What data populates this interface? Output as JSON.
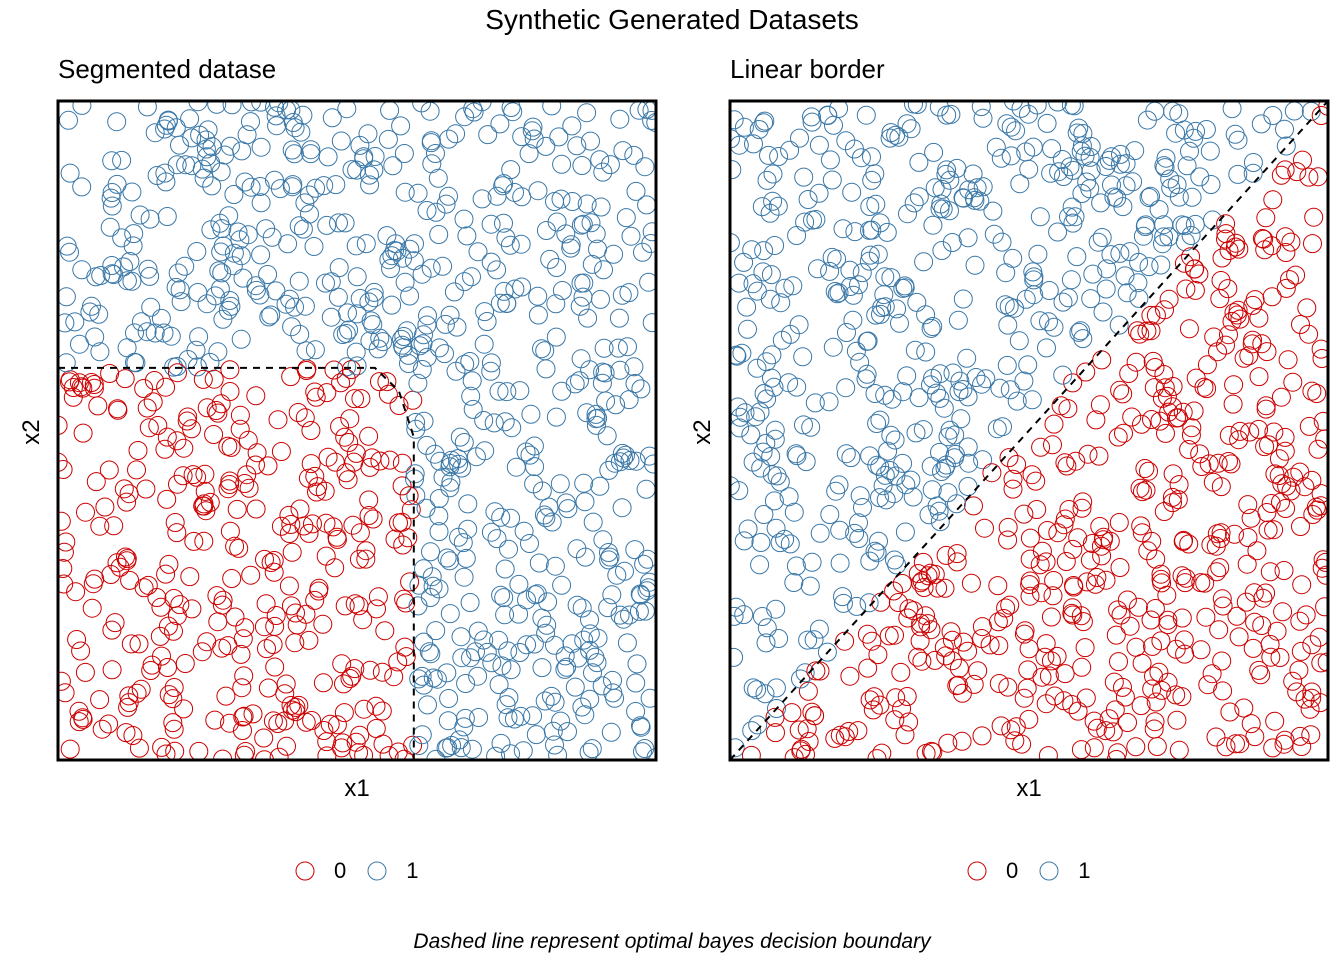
{
  "title": "Synthetic Generated Datasets",
  "caption": "Dashed line represent optimal bayes decision boundary",
  "colors": {
    "class0": "#CC0000",
    "class1": "#3A78A8",
    "boundary": "#000000"
  },
  "legend": [
    {
      "label": "0",
      "color": "#CC0000"
    },
    {
      "label": "1",
      "color": "#3A78A8"
    }
  ],
  "chart_data": [
    {
      "type": "scatter",
      "title": "Segmented datase",
      "xlabel": "x1",
      "ylabel": "x2",
      "xlim": [
        0,
        1
      ],
      "ylim": [
        0,
        1
      ],
      "grid": false,
      "legend_position": "bottom",
      "point_count": 1000,
      "class_rule": "class 0 if x1 < 0.595 and x2 < 0.595, else class 1",
      "series": [
        {
          "name": "0",
          "description": "points in lower-left square"
        },
        {
          "name": "1",
          "description": "points in upper band and right band"
        }
      ],
      "boundary": [
        [
          0.0,
          0.595
        ],
        [
          0.53,
          0.595
        ],
        [
          0.57,
          0.56
        ],
        [
          0.595,
          0.49
        ],
        [
          0.595,
          0.0
        ]
      ]
    },
    {
      "type": "scatter",
      "title": "Linear border",
      "xlabel": "x1",
      "ylabel": "x2",
      "xlim": [
        0,
        1
      ],
      "ylim": [
        0,
        1
      ],
      "grid": false,
      "legend_position": "bottom",
      "point_count": 1000,
      "class_rule": "class 0 if x2 < x1, else class 1",
      "series": [
        {
          "name": "0",
          "description": "points below diagonal"
        },
        {
          "name": "1",
          "description": "points above diagonal"
        }
      ],
      "boundary": [
        [
          0.0,
          0.0
        ],
        [
          1.0,
          1.0
        ]
      ]
    }
  ]
}
